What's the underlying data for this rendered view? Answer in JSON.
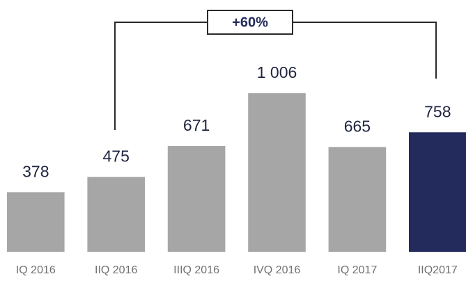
{
  "chart_data": {
    "type": "bar",
    "annotation": "+60%",
    "categories": [
      "IQ 2016",
      "IIQ 2016",
      "IIIQ 2016",
      "IVQ 2016",
      "IQ 2017",
      "IIQ2017"
    ],
    "values": [
      378,
      475,
      671,
      1006,
      665,
      758
    ],
    "value_labels": [
      "378",
      "475",
      "671",
      "1 006",
      "665",
      "758"
    ],
    "colors": [
      "#a6a6a6",
      "#a6a6a6",
      "#a6a6a6",
      "#a6a6a6",
      "#a6a6a6",
      "#232a5c"
    ]
  }
}
